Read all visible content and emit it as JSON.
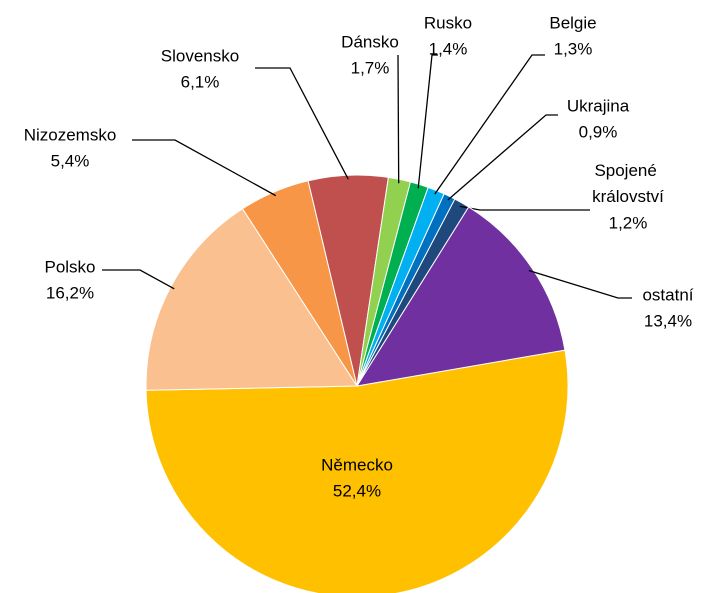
{
  "chart_data": {
    "type": "pie",
    "categories": [
      "Německo",
      "Polsko",
      "Nizozemsko",
      "Slovensko",
      "Dánsko",
      "Rusko",
      "Belgie",
      "Ukrajina",
      "Spojené království",
      "ostatní"
    ],
    "values": [
      52.4,
      16.2,
      5.4,
      6.1,
      1.7,
      1.4,
      1.3,
      0.9,
      1.2,
      13.4
    ],
    "value_labels": [
      "52,4%",
      "16,2%",
      "5,4%",
      "6,1%",
      "1,7%",
      "1,4%",
      "1,3%",
      "0,9%",
      "1,2%",
      "13,4%"
    ],
    "colors": [
      "#FFC000",
      "#FAC090",
      "#F79646",
      "#C0504D",
      "#92D050",
      "#00B050",
      "#00B0F0",
      "#0070C0",
      "#1F497D",
      "#7030A0"
    ]
  }
}
